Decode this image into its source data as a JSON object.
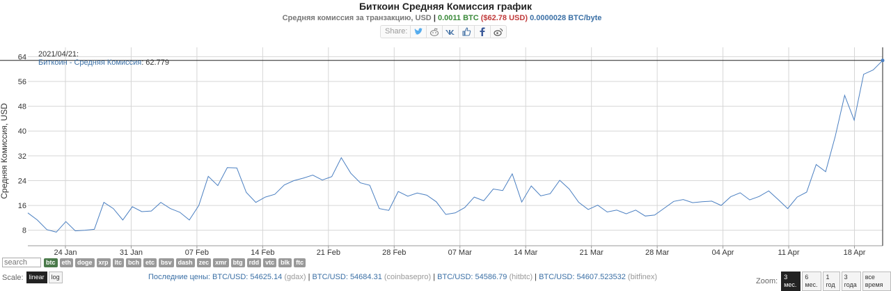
{
  "title": "Биткоин Средняя Комиссия график",
  "subtitle": {
    "label": "Средняя комиссия за транзакцию, USD",
    "sep": "|",
    "btc": "0.0011 BTC",
    "usd": "($62.78 USD)",
    "byte": "0.0000028 BTC/byte"
  },
  "share": {
    "label": "Share:",
    "icons": [
      "twitter-icon",
      "reddit-icon",
      "vk-icon",
      "like-icon",
      "facebook-icon",
      "weibo-icon"
    ]
  },
  "tooltip": {
    "date": "2021/04/21:",
    "series": "Биткоин - Средняя Комиссия",
    "value": ": 62.779"
  },
  "chart_data": {
    "type": "line",
    "ylabel": "Средняя Комиссия, USD",
    "ylim": [
      3,
      67
    ],
    "yticks": [
      8,
      16,
      24,
      32,
      40,
      48,
      56,
      64
    ],
    "x_start": "2021-01-20",
    "x_end": "2021-04-21",
    "xticks": [
      {
        "label": "24 Jan",
        "date": "2021-01-24"
      },
      {
        "label": "31 Jan",
        "date": "2021-01-31"
      },
      {
        "label": "07 Feb",
        "date": "2021-02-07"
      },
      {
        "label": "14 Feb",
        "date": "2021-02-14"
      },
      {
        "label": "21 Feb",
        "date": "2021-02-21"
      },
      {
        "label": "28 Feb",
        "date": "2021-02-28"
      },
      {
        "label": "07 Mar",
        "date": "2021-03-07"
      },
      {
        "label": "14 Mar",
        "date": "2021-03-14"
      },
      {
        "label": "21 Mar",
        "date": "2021-03-21"
      },
      {
        "label": "28 Mar",
        "date": "2021-03-28"
      },
      {
        "label": "04 Apr",
        "date": "2021-04-04"
      },
      {
        "label": "11 Apr",
        "date": "2021-04-11"
      },
      {
        "label": "18 Apr",
        "date": "2021-04-18"
      }
    ],
    "grid": true,
    "color": "#4a7fc1",
    "series": [
      {
        "values": [
          13.6,
          11.3,
          8.2,
          7.4,
          10.8,
          7.8,
          8.0,
          8.3,
          17.0,
          15.0,
          11.3,
          15.6,
          14.0,
          14.2,
          17.0,
          15.0,
          13.8,
          11.3,
          16.0,
          25.4,
          22.4,
          28.2,
          28.1,
          20.2,
          17.0,
          18.7,
          19.6,
          22.6,
          24.0,
          24.8,
          25.8,
          24.2,
          25.3,
          31.4,
          26.4,
          23.3,
          22.5,
          15.0,
          14.4,
          20.5,
          19.0,
          20.0,
          19.3,
          17.2,
          13.1,
          13.6,
          15.3,
          18.7,
          17.5,
          21.3,
          20.8,
          26.2,
          17.1,
          22.3,
          19.1,
          19.8,
          24.1,
          21.3,
          17.0,
          14.7,
          16.1,
          13.9,
          14.5,
          13.3,
          14.5,
          12.6,
          12.9,
          15.1,
          17.3,
          17.9,
          16.9,
          17.2,
          17.4,
          16.0,
          18.8,
          20.1,
          17.8,
          18.9,
          20.7,
          17.9,
          15.0,
          18.7,
          20.3,
          29.2,
          26.9,
          38.2,
          51.5,
          43.5,
          58.3,
          59.7,
          62.779
        ]
      }
    ]
  },
  "coins": [
    "btc",
    "eth",
    "doge",
    "xrp",
    "ltc",
    "bch",
    "etc",
    "bsv",
    "dash",
    "zec",
    "xmr",
    "btg",
    "rdd",
    "vtc",
    "blk",
    "ftc"
  ],
  "active_coin": "btc",
  "search_placeholder": "search",
  "scale": {
    "label": "Scale:",
    "options": [
      "linear",
      "log"
    ],
    "active": "linear"
  },
  "prices": {
    "label": "Последние цены:",
    "items": [
      {
        "pair": "BTC/USD: 54625.14",
        "src": "(gdax)"
      },
      {
        "pair": "BTC/USD: 54684.31",
        "src": "(coinbasepro)"
      },
      {
        "pair": "BTC/USD: 54586.79",
        "src": "(hitbtc)"
      },
      {
        "pair": "BTC/USD: 54607.523532",
        "src": "(bitfinex)"
      }
    ]
  },
  "zoom": {
    "label": "Zoom:",
    "options": [
      "3 мес.",
      "6 мес.",
      "1 год",
      "3 года",
      "все время"
    ],
    "active": "3 мес."
  }
}
